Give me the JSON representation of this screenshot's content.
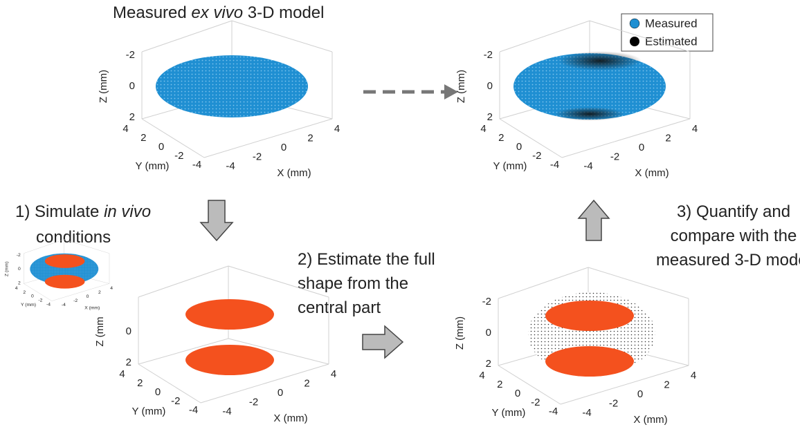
{
  "title": {
    "before": "Measured ",
    "italic": "ex vivo",
    "after": " 3-D model"
  },
  "legend": [
    "Measured",
    "Estimated"
  ],
  "panels": [
    {
      "z_label": "Z (mm)",
      "y_label": "Y (mm)",
      "x_label": "X (mm)",
      "z_ticks": [
        -2,
        0,
        2
      ],
      "y_ticks": [
        4,
        2,
        0,
        -2,
        -4
      ],
      "x_ticks": [
        -4,
        -2,
        0,
        2,
        4
      ]
    },
    {
      "z_label": "Z (mm)",
      "y_label": "Y (mm)",
      "x_label": "X (mm)",
      "z_ticks": [
        -2,
        0,
        2
      ],
      "y_ticks": [
        4,
        2,
        0,
        -2,
        -4
      ],
      "x_ticks": [
        -4,
        -2,
        0,
        2,
        4
      ]
    },
    {
      "z_label": "Z (mm",
      "y_label": "Y (mm)",
      "x_label": "X (mm)",
      "z_ticks": [
        0,
        2
      ],
      "y_ticks": [
        4,
        2,
        0,
        -2,
        -4
      ],
      "x_ticks": [
        -4,
        -2,
        0,
        2,
        4
      ]
    },
    {
      "z_label": "Z (mm)",
      "y_label": "Y (mm)",
      "x_label": "X (mm)",
      "z_ticks": [
        -2,
        0,
        2
      ],
      "y_ticks": [
        4,
        2,
        0,
        -2,
        -4
      ],
      "x_ticks": [
        -4,
        -2,
        0,
        2,
        4
      ]
    },
    {
      "z_label": "Z (mm)",
      "y_label": "Y (mm)",
      "x_label": "X (mm)",
      "z_ticks": [
        -2,
        0,
        2
      ],
      "y_ticks": [
        4,
        2,
        0,
        -2,
        -4
      ],
      "x_ticks": [
        -4,
        -2,
        0,
        2,
        4
      ]
    }
  ],
  "steps": {
    "step1": {
      "before": "1) Simulate ",
      "italic": "in vivo",
      "line2": "conditions"
    },
    "step2": {
      "lines": [
        "2) Estimate the full",
        "shape from the",
        "central part"
      ]
    },
    "step3": {
      "lines": [
        "3) Quantify and",
        "compare with the",
        "measured 3-D model"
      ]
    }
  }
}
